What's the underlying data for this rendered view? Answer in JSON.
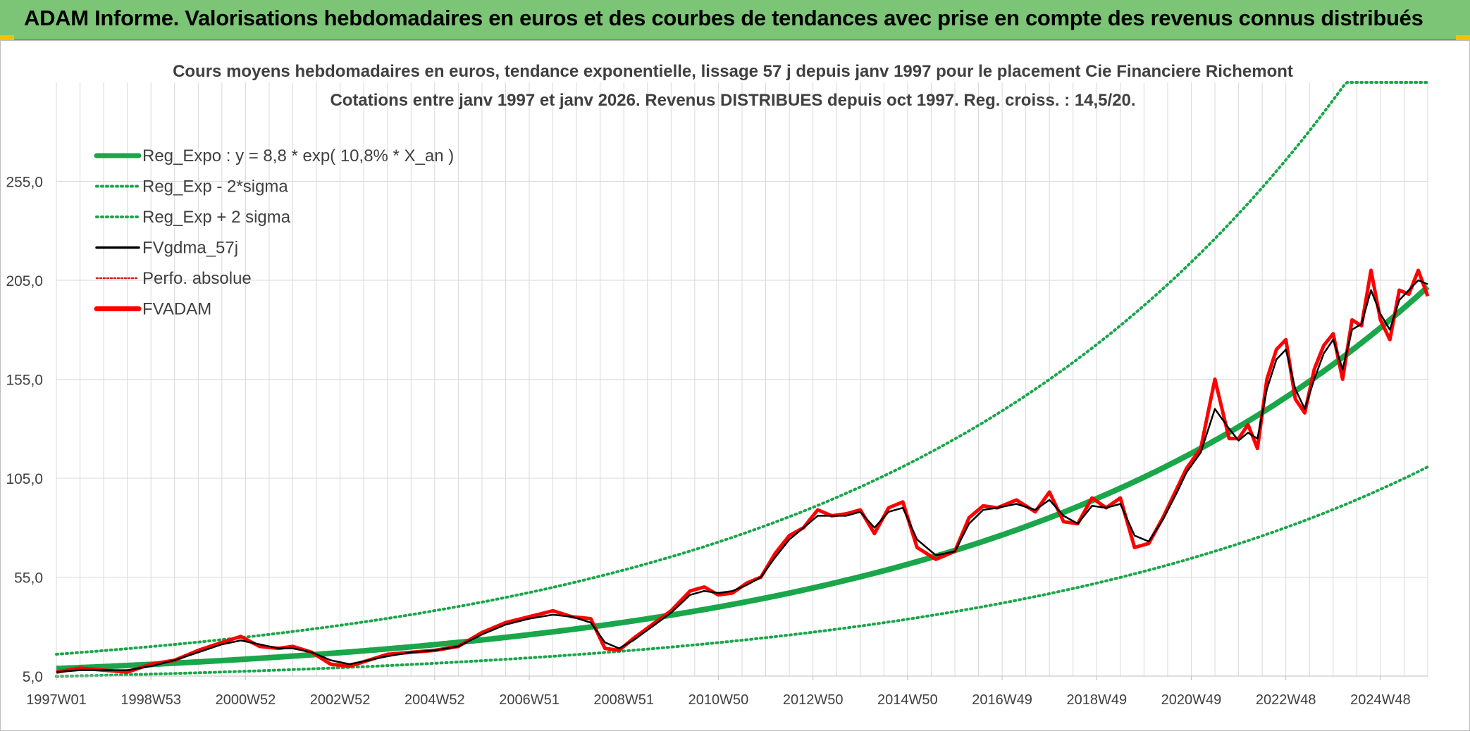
{
  "header": {
    "title": "ADAM Informe. Valorisations hebdomadaires en euros et des courbes de tendances avec prise en compte des revenus connus distribués",
    "background": "#7cc576"
  },
  "colors": {
    "trend": "#1aa64a",
    "band": "#1aa64a",
    "smooth": "#000000",
    "price": "#ff0000",
    "perfo": "#d81b1b",
    "grid": "#d9d9d9",
    "text": "#404040"
  },
  "chart_data": {
    "type": "line",
    "title": "Cours moyens hebdomadaires en euros, tendance exponentielle, lissage 57 j depuis janv 1997 pour le placement Cie Financiere Richemont",
    "subtitle": "Cotations entre janv 1997 et janv 2026. Revenus DISTRIBUES depuis oct 1997. Reg. croiss. : 14,5/20.",
    "x_range": [
      1997.0,
      2026.0
    ],
    "ylim": [
      5.0,
      305.0
    ],
    "y_ticks": [
      5.0,
      55.0,
      105.0,
      155.0,
      205.0,
      255.0
    ],
    "y_tick_labels": [
      "5,0",
      "55,0",
      "105,0",
      "155,0",
      "205,0",
      "255,0"
    ],
    "x_tick_labels": [
      "1997W01",
      "1998W53",
      "2000W52",
      "2002W52",
      "2004W52",
      "2006W51",
      "2008W51",
      "2010W50",
      "2012W50",
      "2014W50",
      "2016W49",
      "2018W49",
      "2020W49",
      "2022W48",
      "2024W48"
    ],
    "x_tick_years": [
      1997.0,
      1999.0,
      2001.0,
      2003.0,
      2005.0,
      2007.0,
      2009.0,
      2011.0,
      2013.0,
      2015.0,
      2017.0,
      2019.0,
      2021.0,
      2023.0,
      2025.0
    ],
    "legend": [
      {
        "label": "Reg_Expo : y = 8,8 * exp( 10,8% *  X_an )",
        "style": "solid-thick",
        "color": "#1aa64a"
      },
      {
        "label": "Reg_Exp - 2*sigma",
        "style": "dotted",
        "color": "#1aa64a"
      },
      {
        "label": "Reg_Exp + 2 sigma",
        "style": "dotted",
        "color": "#1aa64a"
      },
      {
        "label": "FVgdma_57j",
        "style": "solid",
        "color": "#000000"
      },
      {
        "label": "Perfo. absolue",
        "style": "dotted-thin",
        "color": "#d81b1b"
      },
      {
        "label": "FVADAM",
        "style": "solid-thick",
        "color": "#ff0000"
      }
    ],
    "trend": {
      "a": 8.8,
      "b": 0.108,
      "sigma_log": 0.3,
      "cap": 305.0
    },
    "series": [
      {
        "name": "FVADAM",
        "x": [
          1997.0,
          1997.5,
          1998.0,
          1998.5,
          1999.0,
          1999.5,
          2000.0,
          2000.5,
          2000.9,
          2001.3,
          2001.7,
          2002.0,
          2002.4,
          2002.8,
          2003.2,
          2003.6,
          2004.0,
          2004.5,
          2005.0,
          2005.5,
          2006.0,
          2006.5,
          2007.0,
          2007.5,
          2007.9,
          2008.3,
          2008.6,
          2008.9,
          2009.2,
          2009.6,
          2010.0,
          2010.4,
          2010.7,
          2011.0,
          2011.3,
          2011.6,
          2011.9,
          2012.2,
          2012.5,
          2012.8,
          2013.1,
          2013.4,
          2013.7,
          2014.0,
          2014.3,
          2014.6,
          2014.9,
          2015.2,
          2015.6,
          2016.0,
          2016.3,
          2016.6,
          2016.9,
          2017.3,
          2017.7,
          2018.0,
          2018.3,
          2018.6,
          2018.9,
          2019.2,
          2019.5,
          2019.8,
          2020.1,
          2020.4,
          2020.7,
          2020.9,
          2021.2,
          2021.5,
          2021.8,
          2022.0,
          2022.2,
          2022.4,
          2022.6,
          2022.8,
          2023.0,
          2023.2,
          2023.4,
          2023.6,
          2023.8,
          2024.0,
          2024.2,
          2024.4,
          2024.6,
          2024.8,
          2025.0,
          2025.2,
          2025.4,
          2025.6,
          2025.8,
          2026.0
        ],
        "values": [
          7,
          9,
          8,
          7,
          11,
          13,
          18,
          22,
          25,
          20,
          19,
          20,
          17,
          11,
          10,
          13,
          16,
          17,
          18,
          20,
          27,
          32,
          35,
          38,
          35,
          34,
          19,
          18,
          24,
          31,
          38,
          48,
          50,
          46,
          47,
          52,
          55,
          67,
          76,
          80,
          89,
          86,
          87,
          89,
          77,
          90,
          93,
          70,
          64,
          68,
          85,
          91,
          90,
          94,
          88,
          98,
          83,
          82,
          95,
          90,
          95,
          70,
          72,
          85,
          100,
          110,
          120,
          155,
          125,
          125,
          132,
          120,
          155,
          170,
          175,
          145,
          138,
          160,
          172,
          178,
          155,
          185,
          182,
          210,
          185,
          175,
          200,
          198,
          210,
          197
        ]
      },
      {
        "name": "FVgdma_57j",
        "x": [
          1997.0,
          1997.5,
          1998.0,
          1998.5,
          1999.0,
          1999.5,
          2000.0,
          2000.5,
          2000.9,
          2001.3,
          2001.7,
          2002.0,
          2002.4,
          2002.8,
          2003.2,
          2003.6,
          2004.0,
          2004.5,
          2005.0,
          2005.5,
          2006.0,
          2006.5,
          2007.0,
          2007.5,
          2007.9,
          2008.3,
          2008.6,
          2008.9,
          2009.2,
          2009.6,
          2010.0,
          2010.4,
          2010.7,
          2011.0,
          2011.3,
          2011.6,
          2011.9,
          2012.2,
          2012.5,
          2012.8,
          2013.1,
          2013.4,
          2013.7,
          2014.0,
          2014.3,
          2014.6,
          2014.9,
          2015.2,
          2015.6,
          2016.0,
          2016.3,
          2016.6,
          2016.9,
          2017.3,
          2017.7,
          2018.0,
          2018.3,
          2018.6,
          2018.9,
          2019.2,
          2019.5,
          2019.8,
          2020.1,
          2020.4,
          2020.7,
          2020.9,
          2021.2,
          2021.5,
          2021.8,
          2022.0,
          2022.2,
          2022.4,
          2022.6,
          2022.8,
          2023.0,
          2023.2,
          2023.4,
          2023.6,
          2023.8,
          2024.0,
          2024.2,
          2024.4,
          2024.6,
          2024.8,
          2025.0,
          2025.2,
          2025.4,
          2025.6,
          2025.8,
          2026.0
        ],
        "values": [
          7,
          8,
          8,
          8,
          10,
          13,
          17,
          21,
          23,
          21,
          19,
          19,
          17,
          13,
          11,
          13,
          15,
          17,
          18,
          20,
          26,
          31,
          34,
          36,
          35,
          32,
          22,
          19,
          23,
          30,
          37,
          46,
          48,
          47,
          48,
          51,
          55,
          65,
          74,
          80,
          86,
          86,
          86,
          88,
          80,
          88,
          90,
          74,
          66,
          68,
          82,
          89,
          90,
          92,
          89,
          94,
          86,
          82,
          91,
          90,
          92,
          76,
          73,
          84,
          98,
          108,
          118,
          140,
          130,
          124,
          128,
          125,
          150,
          165,
          170,
          150,
          140,
          155,
          168,
          175,
          160,
          180,
          183,
          200,
          188,
          180,
          195,
          200,
          205,
          203
        ]
      }
    ]
  }
}
